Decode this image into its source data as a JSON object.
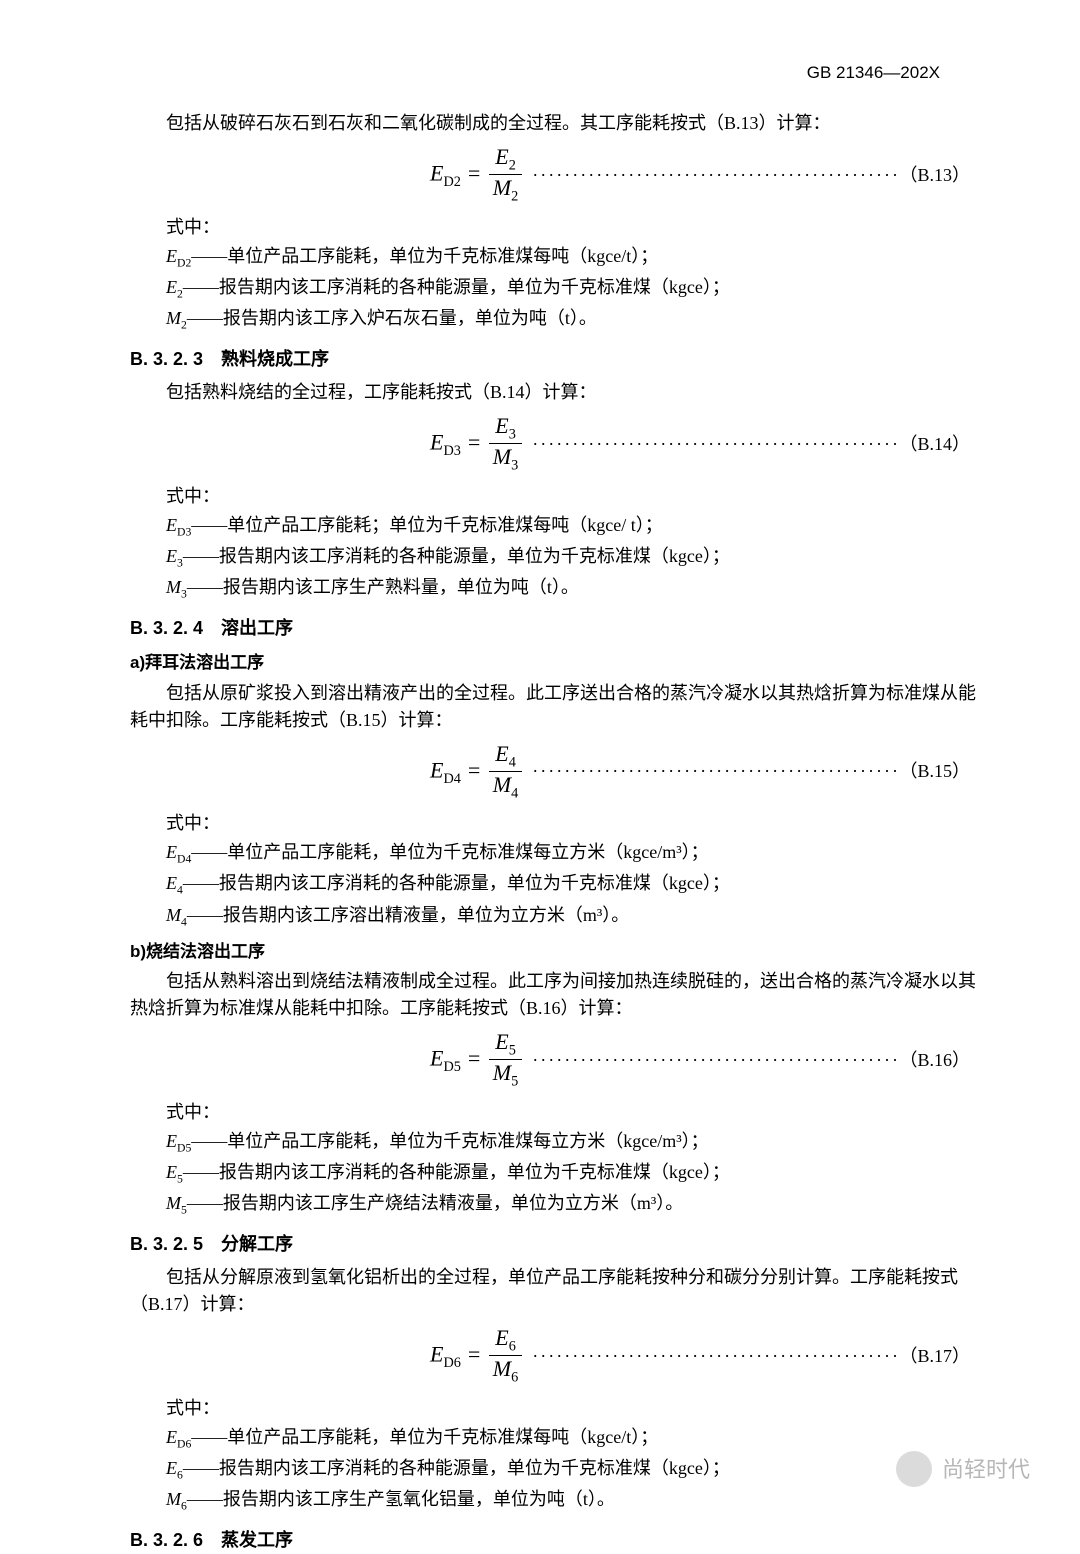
{
  "header": {
    "code": "GB 21346—202X"
  },
  "b13": {
    "intro": "包括从破碎石灰石到石灰和二氧化碳制成的全过程。其工序能耗按式（B.13）计算：",
    "eq_lhs": "E",
    "eq_lhs_sub": "D2",
    "eq_num_sym": "E",
    "eq_num_sub": "2",
    "eq_den_sym": "M",
    "eq_den_sub": "2",
    "eqnum": "（B.13）",
    "where": "式中：",
    "d1_sym": "E",
    "d1_sub": "D2",
    "d1_txt": "——单位产品工序能耗，单位为千克标准煤每吨（kgce/t）；",
    "d2_sym": "E",
    "d2_sub": "2",
    "d2_txt": "——报告期内该工序消耗的各种能源量，单位为千克标准煤（kgce）；",
    "d3_sym": "M",
    "d3_sub": "2",
    "d3_txt": "——报告期内该工序入炉石灰石量，单位为吨（t）。"
  },
  "s323": {
    "title": "B. 3. 2. 3　熟料烧成工序",
    "intro": "包括熟料烧结的全过程，工序能耗按式（B.14）计算：",
    "eq_lhs_sub": "D3",
    "eq_num_sub": "3",
    "eq_den_sub": "3",
    "eqnum": "（B.14）",
    "where": "式中：",
    "d1_sub": "D3",
    "d1_txt": "——单位产品工序能耗；单位为千克标准煤每吨（kgce/ t）；",
    "d2_sub": "3",
    "d2_txt": "——报告期内该工序消耗的各种能源量，单位为千克标准煤（kgce）；",
    "d3_sub": "3",
    "d3_txt": "——报告期内该工序生产熟料量，单位为吨（t）。"
  },
  "s324": {
    "title": "B. 3. 2. 4　溶出工序",
    "a_title": "a)拜耳法溶出工序",
    "a_intro": "　　包括从原矿浆投入到溶出精液产出的全过程。此工序送出合格的蒸汽冷凝水以其热焓折算为标准煤从能耗中扣除。工序能耗按式（B.15）计算：",
    "a_lhs_sub": "D4",
    "a_num_sub": "4",
    "a_den_sub": "4",
    "a_eqnum": "（B.15）",
    "a_where": "式中：",
    "a_d1_sub": "D4",
    "a_d1_txt": "——单位产品工序能耗，单位为千克标准煤每立方米（kgce/m³）；",
    "a_d2_sub": "4",
    "a_d2_txt": "——报告期内该工序消耗的各种能源量，单位为千克标准煤（kgce）；",
    "a_d3_sub": "4",
    "a_d3_txt": "——报告期内该工序溶出精液量，单位为立方米（m³）。",
    "b_title": "b)烧结法溶出工序",
    "b_intro": "　　包括从熟料溶出到烧结法精液制成全过程。此工序为间接加热连续脱硅的，送出合格的蒸汽冷凝水以其热焓折算为标准煤从能耗中扣除。工序能耗按式（B.16）计算：",
    "b_lhs_sub": "D5",
    "b_num_sub": "5",
    "b_den_sub": "5",
    "b_eqnum": "（B.16）",
    "b_where": "式中：",
    "b_d1_sub": "D5",
    "b_d1_txt": "——单位产品工序能耗，单位为千克标准煤每立方米（kgce/m³）；",
    "b_d2_sub": "5",
    "b_d2_txt": "——报告期内该工序消耗的各种能源量，单位为千克标准煤（kgce）；",
    "b_d3_sub": "5",
    "b_d3_txt": "——报告期内该工序生产烧结法精液量，单位为立方米（m³）。"
  },
  "s325": {
    "title": "B. 3. 2. 5　分解工序",
    "intro": "　　包括从分解原液到氢氧化铝析出的全过程，单位产品工序能耗按种分和碳分分别计算。工序能耗按式（B.17）计算：",
    "lhs_sub": "D6",
    "num_sub": "6",
    "den_sub": "6",
    "eqnum": "（B.17）",
    "where": "式中：",
    "d1_sub": "D6",
    "d1_txt": "——单位产品工序能耗，单位为千克标准煤每吨（kgce/t）；",
    "d2_sub": "6",
    "d2_txt": "——报告期内该工序消耗的各种能源量，单位为千克标准煤（kgce）；",
    "d3_sub": "6",
    "d3_txt": "——报告期内该工序生产氢氧化铝量，单位为吨（t）。"
  },
  "s326": {
    "title": "B. 3. 2. 6　蒸发工序"
  },
  "watermark": "尚轻时代",
  "dots": "···················································"
}
